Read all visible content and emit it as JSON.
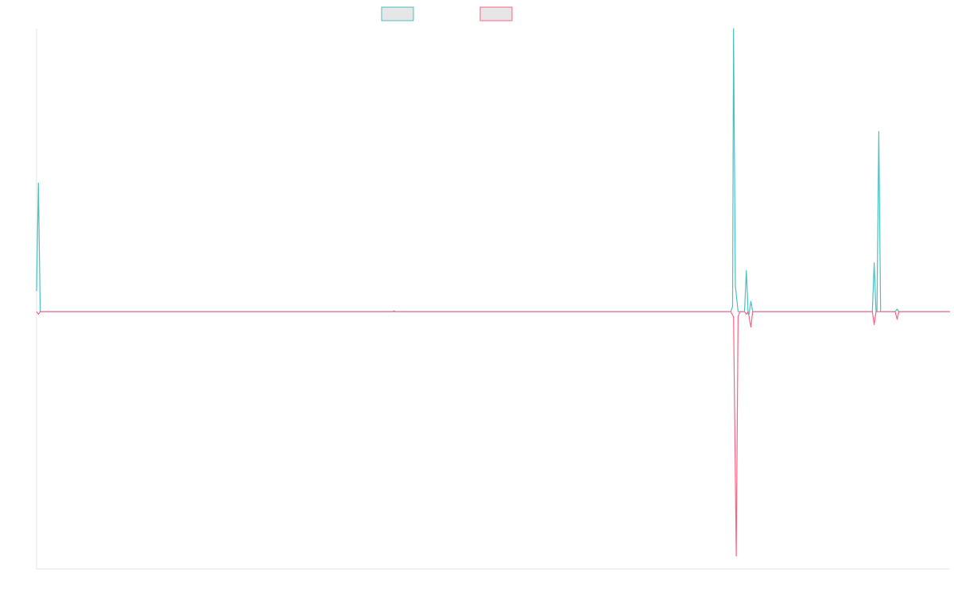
{
  "chart_data": {
    "type": "line",
    "title": "",
    "xlabel": "",
    "ylabel": "",
    "grid": false,
    "legend_position": "top-center",
    "xlim": [
      0,
      1000
    ],
    "ylim": [
      -1.0,
      1.1
    ],
    "series": [
      {
        "name": "",
        "color": "#4bc0c0",
        "fill": "#e6e6e6",
        "points": [
          [
            0,
            0.08
          ],
          [
            2,
            0.5
          ],
          [
            4,
            0
          ],
          [
            5,
            0
          ],
          [
            390,
            0
          ],
          [
            391,
            0.003
          ],
          [
            393,
            0
          ],
          [
            760,
            0
          ],
          [
            762,
            0.02
          ],
          [
            763,
            1.1
          ],
          [
            765,
            0.1
          ],
          [
            768,
            0
          ],
          [
            775,
            0
          ],
          [
            777,
            0.16
          ],
          [
            779,
            -0.01
          ],
          [
            780,
            -0.01
          ],
          [
            782,
            0.04
          ],
          [
            784,
            0
          ],
          [
            915,
            0
          ],
          [
            917,
            0.19
          ],
          [
            919,
            0
          ],
          [
            920,
            0
          ],
          [
            922,
            0.7
          ],
          [
            924,
            0
          ],
          [
            940,
            0
          ],
          [
            942,
            0.01
          ],
          [
            944,
            0
          ],
          [
            1000,
            0
          ]
        ]
      },
      {
        "name": "",
        "color": "#ff6384",
        "fill": "#e6e6e6",
        "points": [
          [
            0,
            0
          ],
          [
            2,
            -0.01
          ],
          [
            4,
            0
          ],
          [
            760,
            0
          ],
          [
            763,
            -0.02
          ],
          [
            766,
            -0.95
          ],
          [
            768,
            -0.02
          ],
          [
            770,
            0
          ],
          [
            775,
            0
          ],
          [
            777,
            -0.01
          ],
          [
            779,
            0
          ],
          [
            782,
            -0.06
          ],
          [
            784,
            0
          ],
          [
            915,
            0
          ],
          [
            917,
            -0.05
          ],
          [
            919,
            0
          ],
          [
            940,
            0
          ],
          [
            942,
            -0.03
          ],
          [
            944,
            0
          ],
          [
            1000,
            0
          ]
        ]
      }
    ]
  }
}
